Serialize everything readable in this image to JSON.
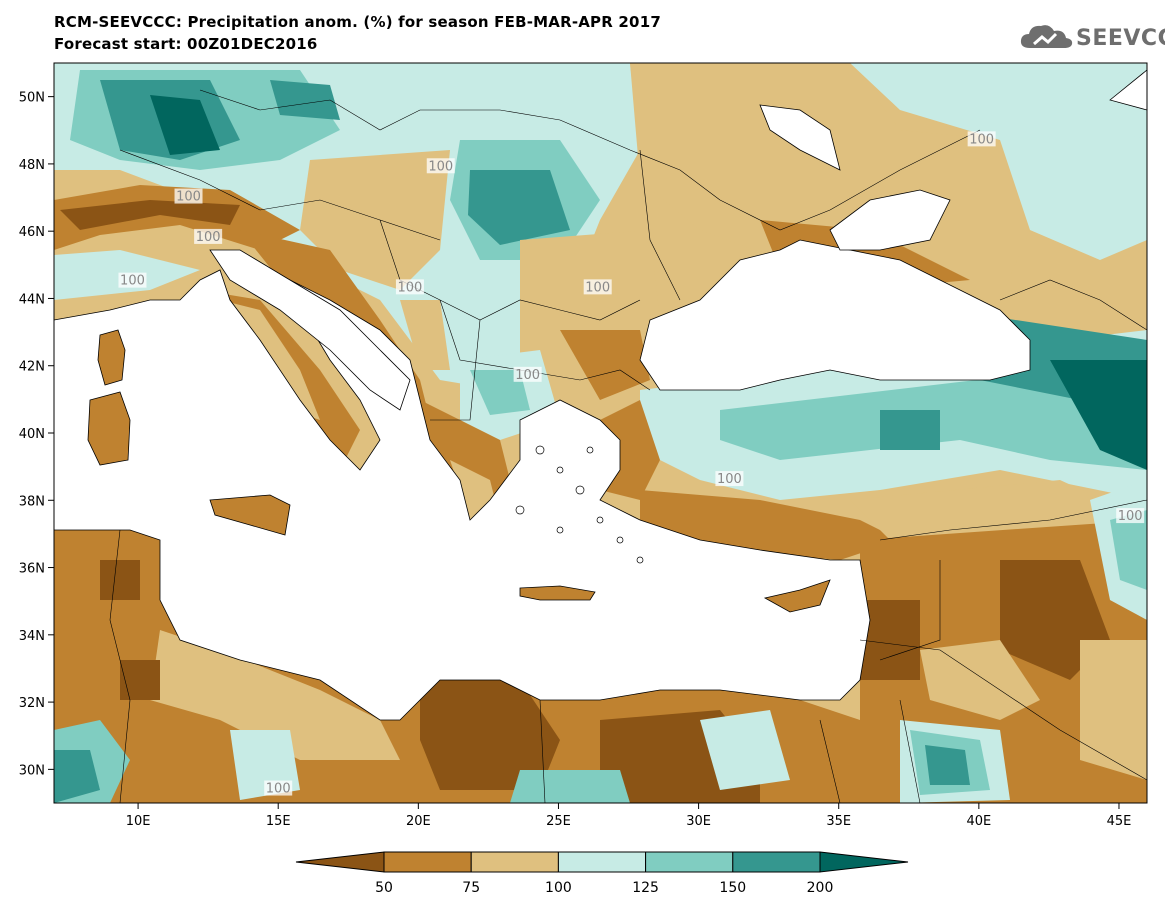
{
  "header": {
    "title_line1": "RCM-SEEVCCC: Precipitation anom. (%) for season FEB-MAR-APR 2017",
    "title_line2": "Forecast start: 00Z01DEC2016"
  },
  "logo": {
    "text": "SEEVCCC",
    "icon": "cloud-icon",
    "color": "#6e6e6e"
  },
  "map": {
    "lon_range": [
      7,
      46
    ],
    "lat_range": [
      29,
      51
    ],
    "lat_ticks": [
      "50N",
      "48N",
      "46N",
      "44N",
      "42N",
      "40N",
      "38N",
      "36N",
      "34N",
      "32N",
      "30N"
    ],
    "lon_ticks": [
      "10E",
      "15E",
      "20E",
      "25E",
      "30E",
      "35E",
      "40E",
      "45E"
    ],
    "contour_label": "100",
    "sea_color": "#ffffff"
  },
  "colorbar": {
    "ticks": [
      "50",
      "75",
      "100",
      "125",
      "150",
      "200"
    ],
    "colors": [
      "#8b5415",
      "#bf8230",
      "#dfc07f",
      "#c7ebe5",
      "#80cdc1",
      "#35978f",
      "#01665e"
    ]
  }
}
